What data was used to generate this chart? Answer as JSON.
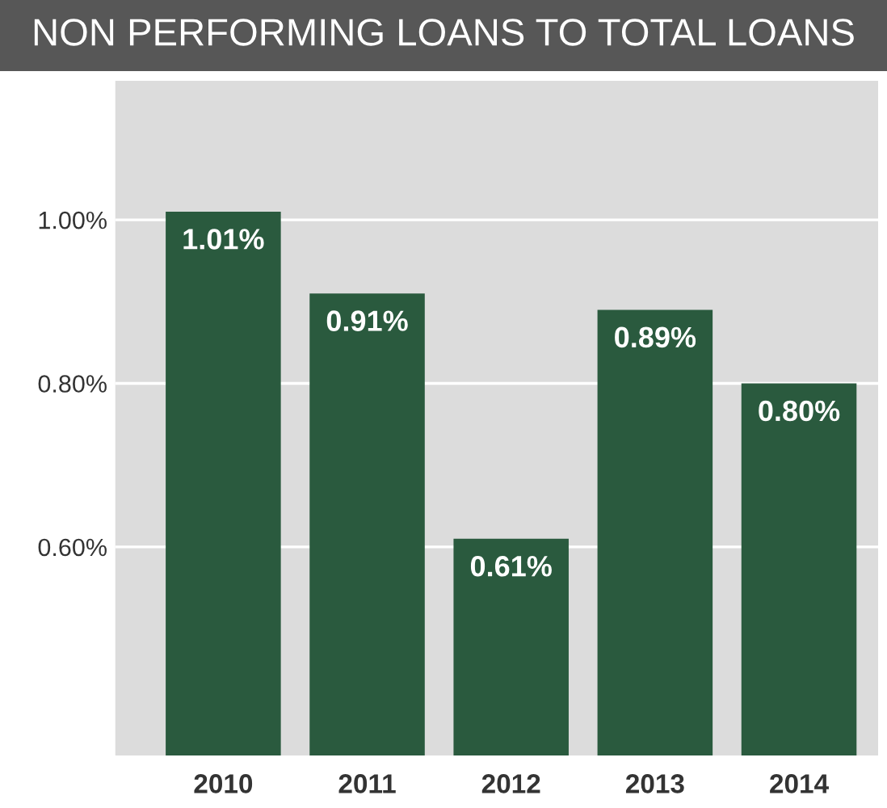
{
  "chart_data": {
    "type": "bar",
    "title": "NON PERFORMING LOANS TO TOTAL LOANS",
    "categories": [
      "2010",
      "2011",
      "2012",
      "2013",
      "2014"
    ],
    "values": [
      1.01,
      0.91,
      0.61,
      0.89,
      0.8
    ],
    "value_labels": [
      "1.01%",
      "0.91%",
      "0.61%",
      "0.89%",
      "0.80%"
    ],
    "color": "#2a5a3e",
    "ylim": [
      0.345,
      1.17
    ],
    "yticks": [
      {
        "value": 0.6,
        "label": "0.60%"
      },
      {
        "value": 0.8,
        "label": "0.80%"
      },
      {
        "value": 1.0,
        "label": "1.00%"
      }
    ],
    "grid": "y",
    "legend": false
  }
}
